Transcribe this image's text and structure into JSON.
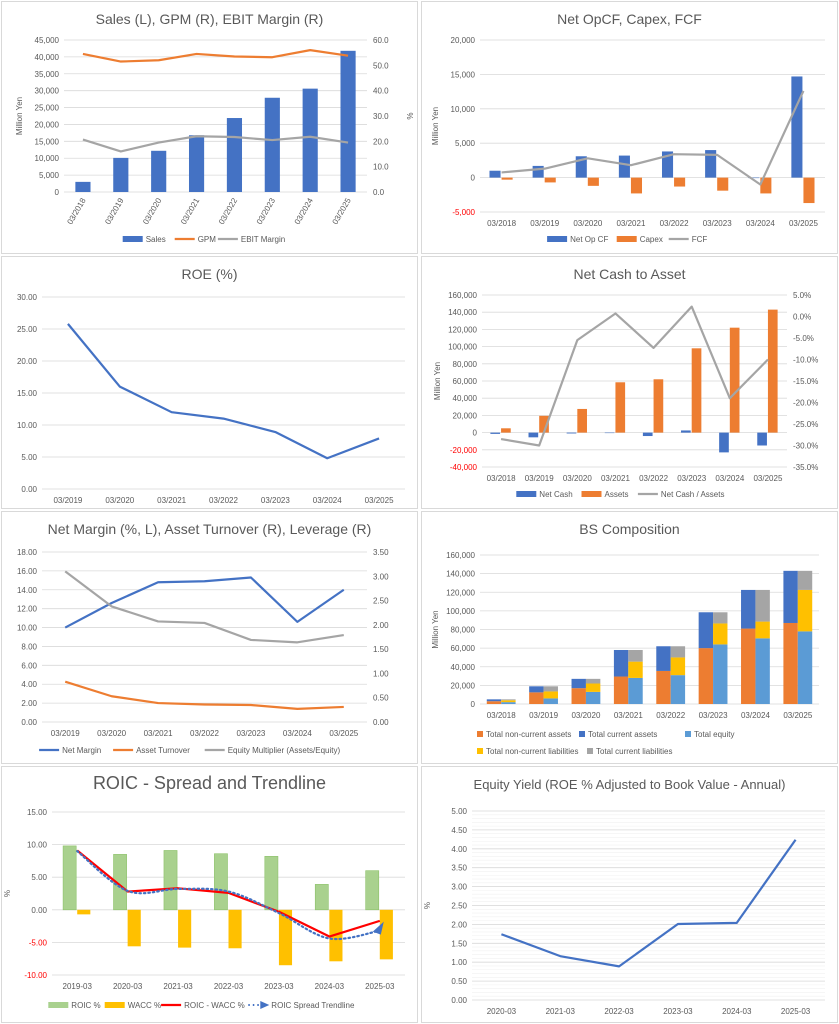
{
  "chart_data": [
    {
      "id": "sales",
      "type": "bar",
      "title": "Sales (L), GPM (R), EBIT Margin (R)",
      "categories": [
        "03/2018",
        "03/2019",
        "03/2020",
        "03/2021",
        "03/2022",
        "03/2023",
        "03/2024",
        "03/2025"
      ],
      "ylabel": "Million Yen",
      "y2label": "%",
      "ylim": [
        0,
        45000
      ],
      "yticks": [
        "0",
        "5,000",
        "10,000",
        "15,000",
        "20,000",
        "25,000",
        "30,000",
        "35,000",
        "40,000",
        "45,000"
      ],
      "y2lim": [
        0,
        60
      ],
      "y2ticks": [
        "0.0",
        "10.0",
        "20.0",
        "30.0",
        "40.0",
        "50.0",
        "60.0"
      ],
      "rotate_x": true,
      "series": [
        {
          "name": "Sales",
          "kind": "bar",
          "axis": "left",
          "color": "#4472c4",
          "values": [
            3000,
            10100,
            12200,
            16800,
            21900,
            27900,
            30600,
            41800
          ]
        },
        {
          "name": "GPM",
          "kind": "line",
          "axis": "right",
          "color": "#ed7d31",
          "values": [
            54.5,
            51.5,
            52.0,
            54.5,
            53.5,
            53.2,
            56.0,
            53.8
          ]
        },
        {
          "name": "EBIT Margin",
          "kind": "line",
          "axis": "right",
          "color": "#a5a5a5",
          "values": [
            20.7,
            16.0,
            19.5,
            22.0,
            21.7,
            20.5,
            21.8,
            19.5
          ]
        }
      ]
    },
    {
      "id": "cashflow",
      "type": "bar",
      "title": "Net OpCF, Capex, FCF",
      "categories": [
        "03/2018",
        "03/2019",
        "03/2020",
        "03/2021",
        "03/2022",
        "03/2023",
        "03/2024",
        "03/2025"
      ],
      "ylabel": "Million Yen",
      "ylim": [
        -5000,
        20000
      ],
      "yticks": [
        "-5,000",
        "0",
        "5,000",
        "10,000",
        "15,000",
        "20,000"
      ],
      "series": [
        {
          "name": "Net Op CF",
          "kind": "bar",
          "axis": "left",
          "color": "#4472c4",
          "values": [
            1000,
            1700,
            3100,
            3200,
            3800,
            4000,
            -50,
            14700
          ]
        },
        {
          "name": "Capex",
          "kind": "bar",
          "axis": "left",
          "color": "#ed7d31",
          "values": [
            -300,
            -700,
            -1200,
            -2300,
            -1300,
            -1900,
            -2300,
            -3700
          ]
        },
        {
          "name": "FCF",
          "kind": "line",
          "axis": "left",
          "color": "#a5a5a5",
          "values": [
            750,
            1300,
            2800,
            1800,
            3400,
            3300,
            -1000,
            12600
          ]
        }
      ]
    },
    {
      "id": "roe",
      "type": "line",
      "title": "ROE (%)",
      "categories": [
        "03/2019",
        "03/2020",
        "03/2021",
        "03/2022",
        "03/2023",
        "03/2024",
        "03/2025"
      ],
      "ylim": [
        0,
        30
      ],
      "yticks": [
        "0.00",
        "5.00",
        "10.00",
        "15.00",
        "20.00",
        "25.00",
        "30.00"
      ],
      "series": [
        {
          "name": "ROE",
          "kind": "line",
          "axis": "left",
          "color": "#4472c4",
          "values": [
            25.8,
            16.0,
            12.0,
            11.0,
            8.9,
            4.8,
            7.9
          ]
        }
      ]
    },
    {
      "id": "netcash",
      "type": "bar",
      "title": "Net Cash to Asset",
      "categories": [
        "03/2018",
        "03/2019",
        "03/2020",
        "03/2021",
        "03/2022",
        "03/2023",
        "03/2024",
        "03/2025"
      ],
      "ylabel": "Million Yen",
      "ylim": [
        -40000,
        160000
      ],
      "yticks": [
        "-40,000",
        "-20,000",
        "0",
        "20,000",
        "40,000",
        "60,000",
        "80,000",
        "100,000",
        "120,000",
        "140,000",
        "160,000"
      ],
      "y2lim": [
        -35,
        5
      ],
      "y2ticks": [
        "-35.0%",
        "-30.0%",
        "-25.0%",
        "-20.0%",
        "-15.0%",
        "-10.0%",
        "-5.0%",
        "0.0%",
        "5.0%"
      ],
      "series": [
        {
          "name": "Net Cash",
          "kind": "bar",
          "axis": "left",
          "color": "#4472c4",
          "values": [
            -1500,
            -5500,
            -1000,
            0,
            -4000,
            2500,
            -23000,
            -15000
          ]
        },
        {
          "name": "Assets",
          "kind": "bar",
          "axis": "left",
          "color": "#ed7d31",
          "values": [
            5000,
            19500,
            27500,
            58500,
            62000,
            98000,
            122000,
            143000
          ]
        },
        {
          "name": "Net Cash / Assets",
          "kind": "line",
          "axis": "right",
          "color": "#a5a5a5",
          "values": [
            -28.5,
            -30.0,
            -5.5,
            0.7,
            -7.3,
            2.3,
            -19.0,
            -10.0
          ]
        }
      ]
    },
    {
      "id": "dupont",
      "type": "line",
      "title": "Net Margin (%, L), Asset Turnover (R), Leverage (R)",
      "categories": [
        "03/2019",
        "03/2020",
        "03/2021",
        "03/2022",
        "03/2023",
        "03/2024",
        "03/2025"
      ],
      "ylim": [
        0,
        18
      ],
      "yticks": [
        "0.00",
        "2.00",
        "4.00",
        "6.00",
        "8.00",
        "10.00",
        "12.00",
        "14.00",
        "16.00",
        "18.00"
      ],
      "y2lim": [
        0,
        3.5
      ],
      "y2ticks": [
        "0.00",
        "0.50",
        "1.00",
        "1.50",
        "2.00",
        "2.50",
        "3.00",
        "3.50"
      ],
      "series": [
        {
          "name": "Net Margin",
          "kind": "line",
          "axis": "left",
          "color": "#4472c4",
          "values": [
            10.0,
            12.6,
            14.8,
            14.9,
            15.3,
            10.6,
            14.0
          ]
        },
        {
          "name": "Asset Turnover",
          "kind": "line",
          "axis": "right",
          "color": "#ed7d31",
          "values": [
            0.83,
            0.53,
            0.39,
            0.36,
            0.35,
            0.27,
            0.31
          ]
        },
        {
          "name": "Equity Multiplier (Assets/Equity)",
          "kind": "line",
          "axis": "right",
          "color": "#a5a5a5",
          "values": [
            3.1,
            2.38,
            2.07,
            2.04,
            1.69,
            1.64,
            1.79
          ]
        }
      ]
    },
    {
      "id": "bs",
      "type": "bar",
      "title": "BS Composition",
      "categories": [
        "03/2018",
        "03/2019",
        "03/2020",
        "03/2021",
        "03/2022",
        "03/2023",
        "03/2024",
        "03/2025"
      ],
      "ylabel": "Million Yen",
      "ylim": [
        0,
        160000
      ],
      "yticks": [
        "0",
        "20,000",
        "40,000",
        "60,000",
        "80,000",
        "100,000",
        "120,000",
        "140,000",
        "160,000"
      ],
      "stacks": [
        {
          "stack": "assets",
          "series": [
            {
              "name": "Total non-current assets",
              "color": "#ed7d31",
              "values": [
                3000,
                12500,
                17000,
                29500,
                35500,
                60000,
                81000,
                87000
              ]
            },
            {
              "name": "Total current assets",
              "color": "#4472c4",
              "values": [
                2000,
                6500,
                10000,
                28500,
                26500,
                38500,
                41500,
                56000
              ]
            }
          ]
        },
        {
          "stack": "liabilities",
          "series": [
            {
              "name": "Total equity",
              "color": "#5b9bd5",
              "values": [
                2000,
                6000,
                13000,
                28000,
                31000,
                64000,
                70500,
                78000
              ]
            },
            {
              "name": "Total non-current liabilities",
              "color": "#ffc000",
              "values": [
                2000,
                7500,
                9000,
                17500,
                19000,
                22500,
                18000,
                44500
              ]
            },
            {
              "name": "Total current liabilities",
              "color": "#a5a5a5",
              "values": [
                1000,
                5500,
                5000,
                12500,
                12000,
                12000,
                34000,
                20500
              ]
            }
          ]
        }
      ],
      "legend": [
        "Total non-current assets",
        "Total current assets",
        "Total equity",
        "Total non-current liabilities",
        "Total current liabilities"
      ]
    },
    {
      "id": "roic",
      "type": "bar",
      "title": "ROIC - Spread and Trendline",
      "categories": [
        "2019-03",
        "2020-03",
        "2021-03",
        "2022-03",
        "2023-03",
        "2024-03",
        "2025-03"
      ],
      "ylabel": "%",
      "ylim": [
        -10,
        15
      ],
      "yticks": [
        "-10.00",
        "-5.00",
        "0.00",
        "5.00",
        "10.00",
        "15.00"
      ],
      "series": [
        {
          "name": "ROIC %",
          "kind": "bar",
          "axis": "left",
          "color": "#a9d18e",
          "values": [
            9.8,
            8.5,
            9.1,
            8.6,
            8.2,
            3.9,
            6.0
          ]
        },
        {
          "name": "WACC %",
          "kind": "bar",
          "axis": "left",
          "color": "#ffc000",
          "values": [
            -0.7,
            -5.6,
            -5.8,
            -5.9,
            -8.5,
            -7.9,
            -7.6
          ]
        },
        {
          "name": "ROIC - WACC %",
          "kind": "line",
          "axis": "left",
          "color": "#ff0000",
          "values": [
            9.1,
            2.8,
            3.3,
            2.6,
            -0.3,
            -4.1,
            -1.7
          ]
        },
        {
          "name": "ROIC Spread Trendline",
          "kind": "dotted",
          "axis": "left",
          "color": "#4472c4",
          "values": [
            9.0,
            2.9,
            3.2,
            2.8,
            -0.5,
            -4.4,
            -3.2
          ]
        }
      ]
    },
    {
      "id": "eqyield",
      "type": "line",
      "title": "Equity Yield (ROE % Adjusted to Book Value - Annual)",
      "categories": [
        "2020-03",
        "2021-03",
        "2022-03",
        "2023-03",
        "2024-03",
        "2025-03"
      ],
      "ylabel": "%",
      "ylim": [
        0,
        5
      ],
      "yticks": [
        "0.00",
        "0.50",
        "1.00",
        "1.50",
        "2.00",
        "2.50",
        "3.00",
        "3.50",
        "4.00",
        "4.50",
        "5.00"
      ],
      "minor_grid": true,
      "series": [
        {
          "name": "Equity Yield",
          "kind": "line",
          "axis": "left",
          "color": "#4472c4",
          "values": [
            1.74,
            1.16,
            0.89,
            2.01,
            2.04,
            4.24
          ]
        }
      ]
    }
  ]
}
